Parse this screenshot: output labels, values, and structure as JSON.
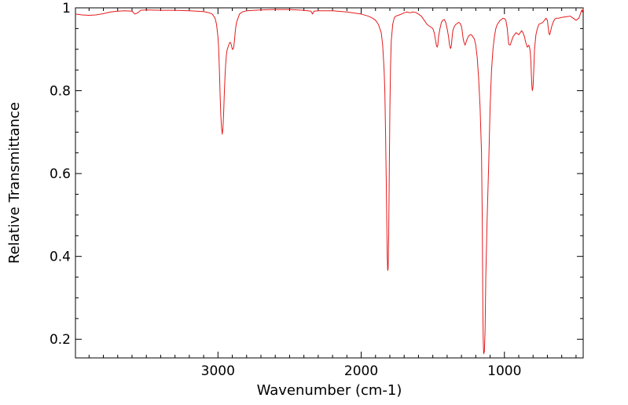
{
  "chart_data": {
    "type": "line",
    "title": "",
    "xlabel": "Wavenumber (cm-1)",
    "ylabel": "Relative Transmittance",
    "x_reversed": true,
    "xlim": [
      3995,
      450
    ],
    "ylim": [
      0.155,
      1.0
    ],
    "x_major_ticks": [
      3000,
      2000,
      1000
    ],
    "x_tick_labels": [
      "3000",
      "2000",
      "1000"
    ],
    "x_minor_step": 100,
    "y_major_ticks": [
      0.2,
      0.4,
      0.6,
      0.8,
      1.0
    ],
    "y_tick_labels": [
      "0.2",
      "0.4",
      "0.6",
      "0.8",
      "1"
    ],
    "y_minor_step": 0.05,
    "grid": false,
    "line_color": "#e41a1c",
    "series": [
      {
        "name": "",
        "x": [
          3995,
          3950,
          3900,
          3850,
          3800,
          3750,
          3700,
          3650,
          3600,
          3580,
          3560,
          3540,
          3500,
          3400,
          3300,
          3200,
          3100,
          3060,
          3040,
          3020,
          3010,
          3000,
          2995,
          2990,
          2985,
          2980,
          2975,
          2970,
          2965,
          2960,
          2955,
          2950,
          2945,
          2940,
          2935,
          2930,
          2925,
          2920,
          2915,
          2910,
          2905,
          2900,
          2895,
          2890,
          2885,
          2880,
          2875,
          2870,
          2860,
          2850,
          2830,
          2800,
          2700,
          2600,
          2500,
          2400,
          2350,
          2340,
          2330,
          2300,
          2200,
          2100,
          2000,
          1950,
          1920,
          1900,
          1880,
          1860,
          1850,
          1840,
          1835,
          1830,
          1825,
          1822,
          1820,
          1818,
          1815,
          1812,
          1808,
          1804,
          1800,
          1795,
          1790,
          1780,
          1770,
          1760,
          1740,
          1720,
          1700,
          1680,
          1660,
          1640,
          1620,
          1600,
          1580,
          1560,
          1540,
          1520,
          1500,
          1490,
          1485,
          1480,
          1475,
          1470,
          1465,
          1460,
          1450,
          1440,
          1430,
          1420,
          1410,
          1400,
          1395,
          1390,
          1385,
          1380,
          1375,
          1370,
          1365,
          1360,
          1350,
          1340,
          1330,
          1320,
          1310,
          1300,
          1295,
          1290,
          1285,
          1280,
          1275,
          1270,
          1260,
          1250,
          1240,
          1230,
          1220,
          1210,
          1200,
          1190,
          1180,
          1170,
          1160,
          1155,
          1152,
          1150,
          1148,
          1145,
          1140,
          1135,
          1130,
          1120,
          1110,
          1100,
          1090,
          1080,
          1070,
          1060,
          1050,
          1040,
          1030,
          1020,
          1010,
          1000,
          990,
          985,
          980,
          975,
          970,
          960,
          950,
          940,
          930,
          920,
          910,
          900,
          890,
          880,
          870,
          860,
          850,
          840,
          830,
          825,
          820,
          815,
          812,
          808,
          805,
          800,
          795,
          790,
          780,
          770,
          760,
          750,
          740,
          730,
          720,
          710,
          700,
          695,
          690,
          685,
          680,
          670,
          660,
          650,
          640,
          620,
          600,
          580,
          560,
          540,
          520,
          500,
          480,
          470,
          460,
          455,
          450
        ],
        "y": [
          0.985,
          0.983,
          0.982,
          0.983,
          0.986,
          0.99,
          0.992,
          0.993,
          0.992,
          0.985,
          0.988,
          0.994,
          0.995,
          0.994,
          0.994,
          0.993,
          0.991,
          0.988,
          0.985,
          0.975,
          0.96,
          0.93,
          0.9,
          0.85,
          0.79,
          0.74,
          0.71,
          0.695,
          0.71,
          0.75,
          0.8,
          0.84,
          0.87,
          0.89,
          0.9,
          0.905,
          0.91,
          0.915,
          0.917,
          0.914,
          0.908,
          0.9,
          0.9,
          0.905,
          0.92,
          0.94,
          0.955,
          0.965,
          0.975,
          0.985,
          0.99,
          0.993,
          0.995,
          0.996,
          0.996,
          0.994,
          0.992,
          0.985,
          0.992,
          0.993,
          0.993,
          0.99,
          0.985,
          0.98,
          0.975,
          0.97,
          0.96,
          0.94,
          0.91,
          0.85,
          0.8,
          0.7,
          0.58,
          0.5,
          0.45,
          0.4,
          0.366,
          0.37,
          0.45,
          0.6,
          0.75,
          0.86,
          0.92,
          0.96,
          0.975,
          0.98,
          0.982,
          0.985,
          0.988,
          0.99,
          0.988,
          0.99,
          0.989,
          0.985,
          0.98,
          0.97,
          0.96,
          0.955,
          0.95,
          0.94,
          0.93,
          0.92,
          0.91,
          0.905,
          0.91,
          0.93,
          0.95,
          0.965,
          0.97,
          0.972,
          0.965,
          0.95,
          0.94,
          0.93,
          0.915,
          0.905,
          0.902,
          0.91,
          0.93,
          0.945,
          0.955,
          0.96,
          0.962,
          0.965,
          0.963,
          0.955,
          0.945,
          0.93,
          0.92,
          0.915,
          0.91,
          0.915,
          0.925,
          0.932,
          0.935,
          0.935,
          0.93,
          0.925,
          0.91,
          0.88,
          0.83,
          0.76,
          0.65,
          0.5,
          0.35,
          0.25,
          0.2,
          0.165,
          0.17,
          0.22,
          0.35,
          0.5,
          0.62,
          0.76,
          0.85,
          0.9,
          0.93,
          0.95,
          0.96,
          0.965,
          0.97,
          0.972,
          0.975,
          0.974,
          0.97,
          0.96,
          0.95,
          0.93,
          0.912,
          0.91,
          0.92,
          0.93,
          0.935,
          0.94,
          0.938,
          0.935,
          0.94,
          0.945,
          0.94,
          0.93,
          0.915,
          0.905,
          0.91,
          0.905,
          0.895,
          0.87,
          0.84,
          0.81,
          0.8,
          0.81,
          0.85,
          0.9,
          0.935,
          0.95,
          0.96,
          0.962,
          0.963,
          0.966,
          0.97,
          0.975,
          0.97,
          0.955,
          0.94,
          0.935,
          0.94,
          0.955,
          0.965,
          0.972,
          0.975,
          0.975,
          0.977,
          0.978,
          0.979,
          0.98,
          0.975,
          0.97,
          0.975,
          0.985,
          0.995,
          0.99,
          0.998
        ]
      }
    ]
  }
}
